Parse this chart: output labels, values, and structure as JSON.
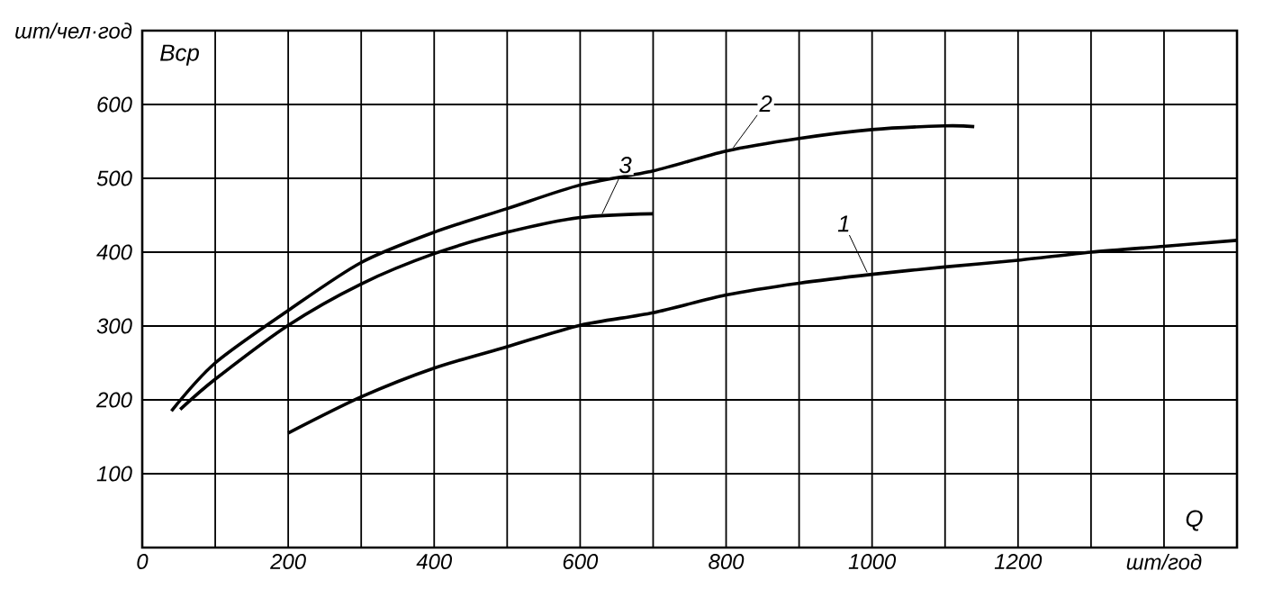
{
  "chart_data": {
    "type": "line",
    "xlabel": "Q",
    "ylabel": "Вср",
    "xlim": [
      0,
      1500
    ],
    "ylim": [
      0,
      700
    ],
    "xticks": [
      0,
      {
        "value": 100,
        "label": null
      },
      200,
      {
        "value": 300,
        "label": null
      },
      400,
      {
        "value": 500,
        "label": null
      },
      600,
      {
        "value": 700,
        "label": null
      },
      800,
      {
        "value": 900,
        "label": null
      },
      1000,
      {
        "value": 1100,
        "label": null
      },
      1200,
      {
        "value": 1300,
        "label": null
      },
      {
        "value": 1400,
        "label": "шт/год"
      }
    ],
    "yticks": [
      {
        "value": 0,
        "label": null
      },
      100,
      200,
      300,
      400,
      500,
      600,
      {
        "value": 700,
        "label": "шт/чел·год"
      }
    ],
    "grid": true,
    "legend": false,
    "marker": "none",
    "line_style": "solid",
    "series": [
      {
        "name": "1",
        "color": "#000000",
        "x": [
          200,
          300,
          400,
          500,
          600,
          700,
          800,
          900,
          1000,
          1100,
          1200,
          1300,
          1400,
          1500
        ],
        "values": [
          155,
          204,
          243,
          272,
          301,
          318,
          342,
          358,
          370,
          380,
          389,
          400,
          408,
          416
        ]
      },
      {
        "name": "2",
        "color": "#000000",
        "x": [
          40,
          100,
          200,
          300,
          400,
          500,
          600,
          700,
          800,
          900,
          1000,
          1100,
          1140
        ],
        "values": [
          185,
          250,
          321,
          386,
          427,
          459,
          491,
          510,
          537,
          554,
          566,
          571,
          570
        ]
      },
      {
        "name": "3",
        "color": "#000000",
        "x": [
          52,
          100,
          200,
          300,
          400,
          500,
          600,
          700
        ],
        "values": [
          187,
          228,
          301,
          357,
          398,
          427,
          447,
          452
        ]
      }
    ]
  }
}
